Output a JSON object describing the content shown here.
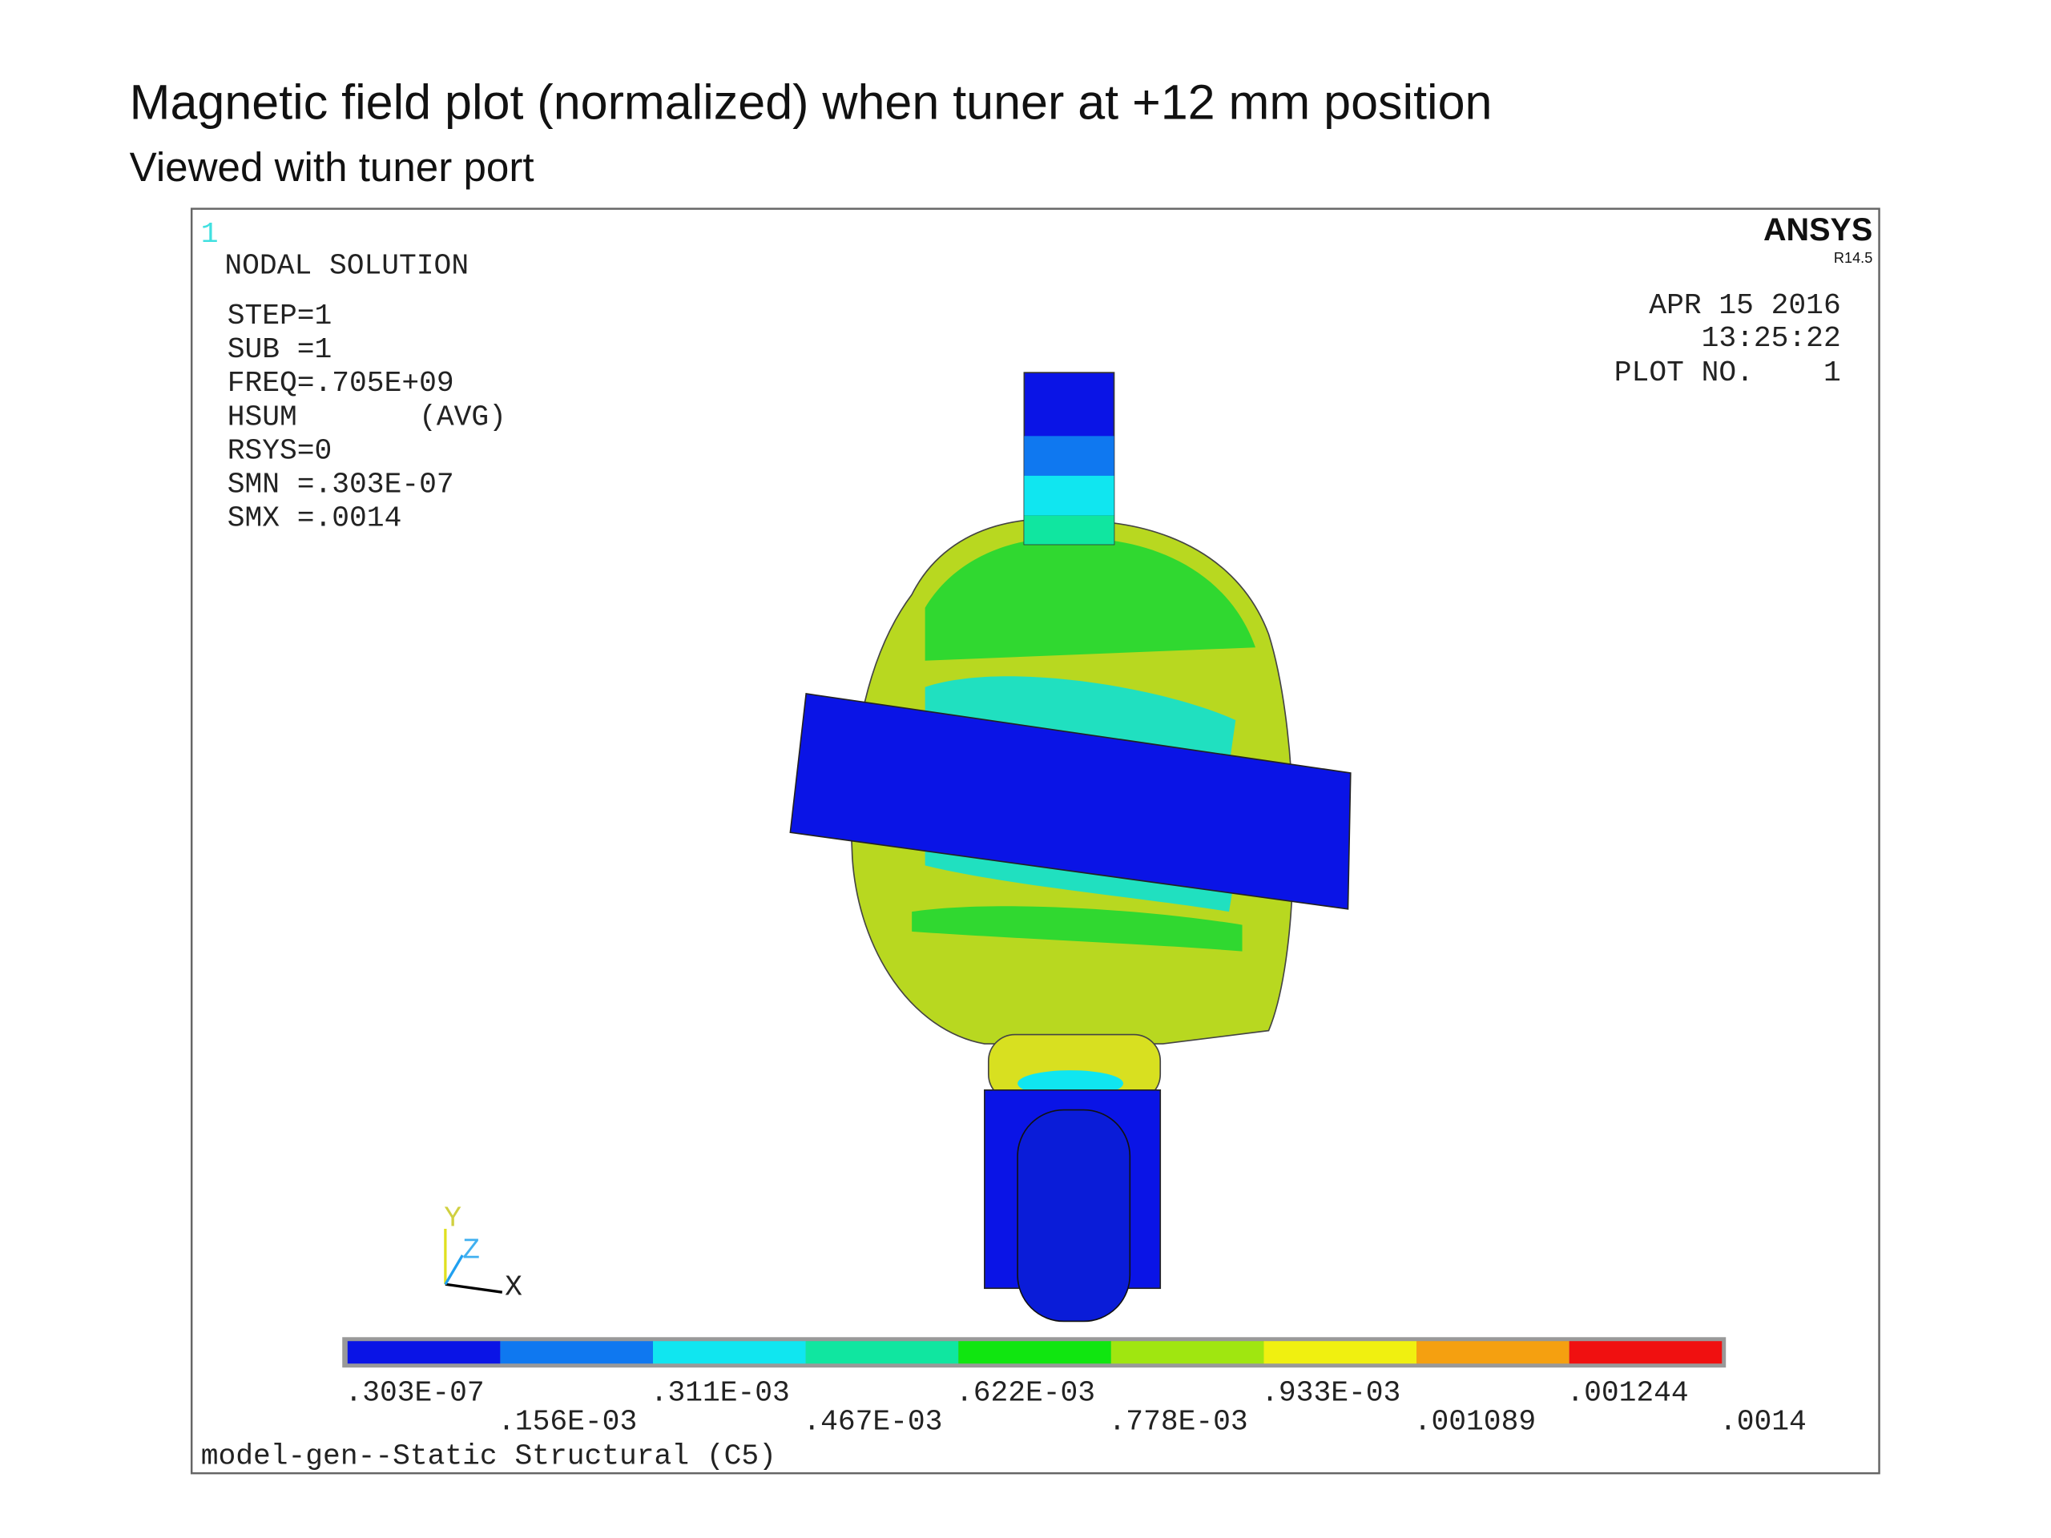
{
  "header": {
    "title": "Magnetic field plot (normalized) when tuner at +12 mm position",
    "subtitle": "Viewed with tuner port"
  },
  "plot": {
    "window_number": "1",
    "solution": "NODAL SOLUTION",
    "info": [
      "STEP=1",
      "SUB =1",
      "FREQ=.705E+09",
      "HSUM       (AVG)",
      "RSYS=0",
      "SMN =.303E-07",
      "SMX =.0014"
    ],
    "brand": "ANSYS",
    "version": "R14.5",
    "date": "APR 15 2016",
    "time": "13:25:22",
    "plot_no": "PLOT NO.    1",
    "triad": {
      "y": "Y",
      "z": "Z",
      "x": "X"
    },
    "footer": "model-gen--Static Structural (C5)"
  },
  "legend": {
    "colors": [
      "#0a14e6",
      "#0f78f0",
      "#10e6f0",
      "#10e6a0",
      "#10e610",
      "#a0e610",
      "#f0f010",
      "#f5a010",
      "#f01010"
    ],
    "labels": [
      ".303E-07",
      ".156E-03",
      ".311E-03",
      ".467E-03",
      ".622E-03",
      ".778E-03",
      ".933E-03",
      ".001089",
      ".001244",
      ".0014"
    ]
  }
}
